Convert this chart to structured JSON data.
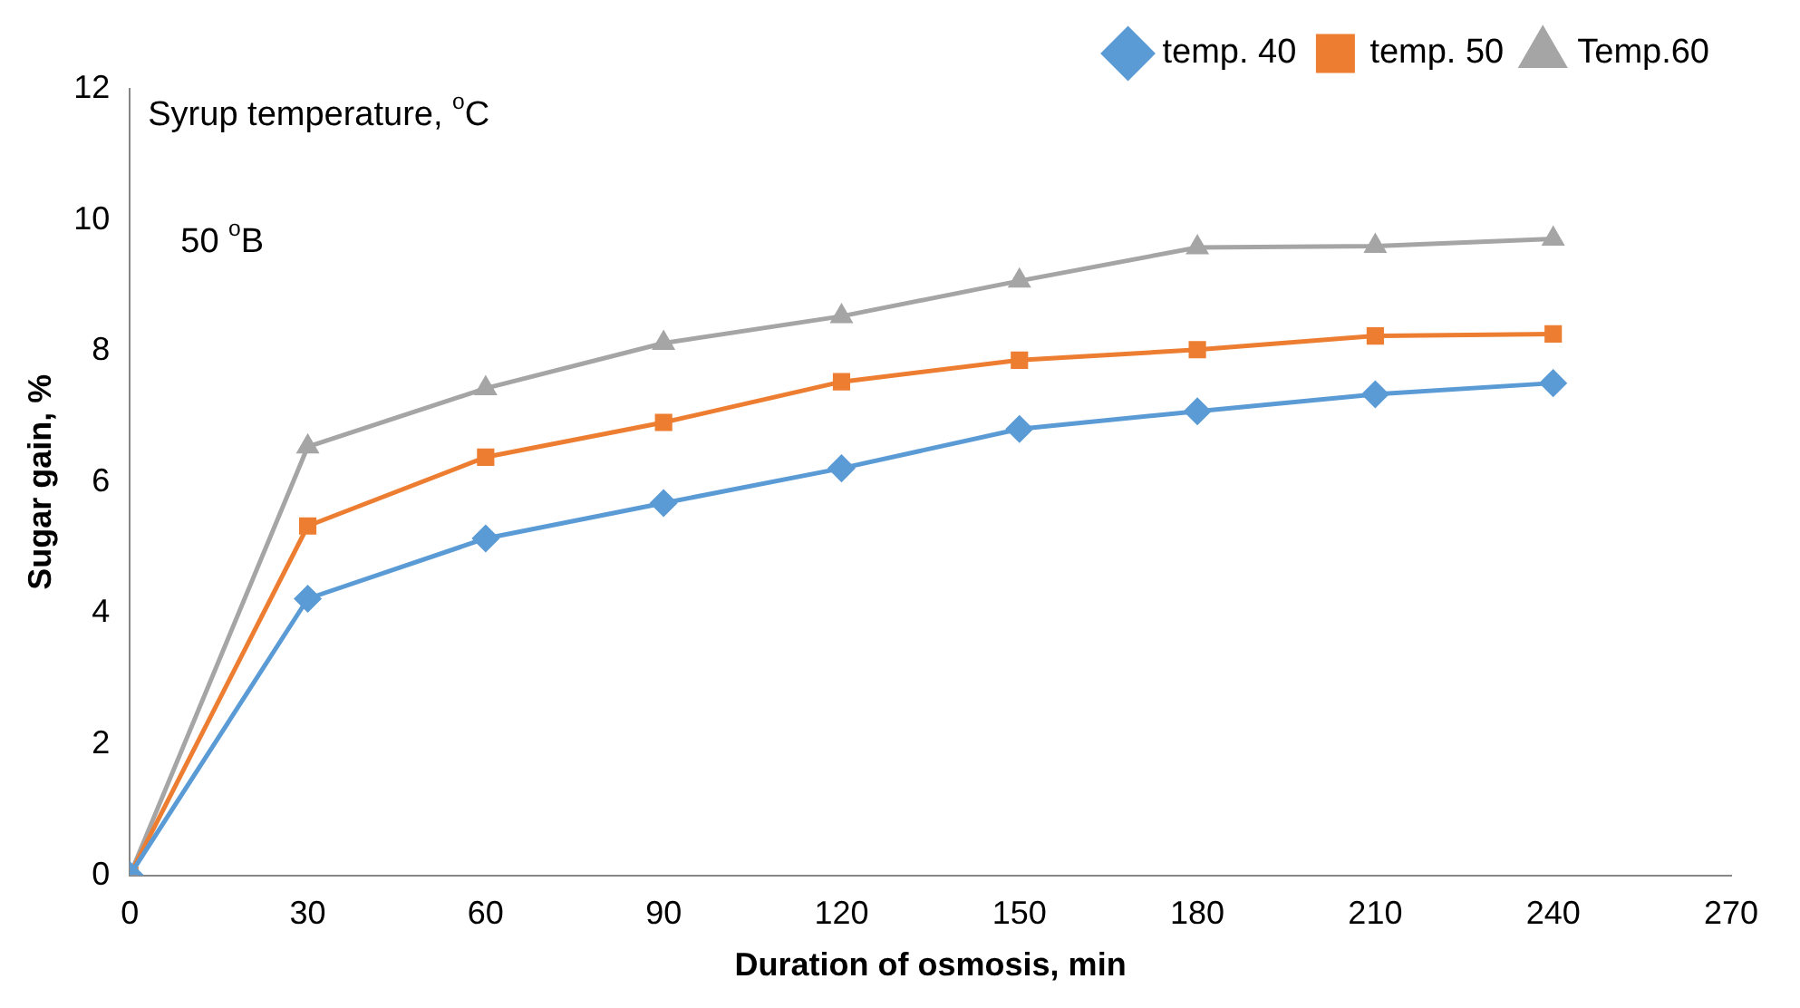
{
  "chart_data": {
    "type": "line",
    "xlabel": "Duration of osmosis, min",
    "ylabel": "Sugar gain, %",
    "annotations": [
      "Syrup temperature, $^{o}$C",
      "50 $^{o}$B"
    ],
    "x": [
      0,
      30,
      60,
      90,
      120,
      150,
      180,
      210,
      240
    ],
    "series": [
      {
        "name": "temp. 40",
        "color": "#5b9bd5",
        "marker": "diamond",
        "values": [
          0,
          4.22,
          5.14,
          5.68,
          6.21,
          6.81,
          7.08,
          7.34,
          7.51
        ]
      },
      {
        "name": "temp. 50",
        "color": "#ed7d31",
        "marker": "square",
        "values": [
          0,
          5.33,
          6.38,
          6.91,
          7.53,
          7.86,
          8.02,
          8.23,
          8.26
        ]
      },
      {
        "name": "Temp.60",
        "color": "#a5a5a5",
        "marker": "triangle",
        "values": [
          0,
          6.54,
          7.43,
          8.12,
          8.53,
          9.07,
          9.58,
          9.6,
          9.71
        ]
      }
    ],
    "xlim": [
      0,
      270
    ],
    "xticks": [
      0,
      30,
      60,
      90,
      120,
      150,
      180,
      210,
      240,
      270
    ],
    "ylim": [
      0,
      12
    ],
    "yticks": [
      0,
      2,
      4,
      6,
      8,
      10,
      12
    ],
    "grid": false,
    "legend": "top right",
    "line_style": "solid"
  }
}
